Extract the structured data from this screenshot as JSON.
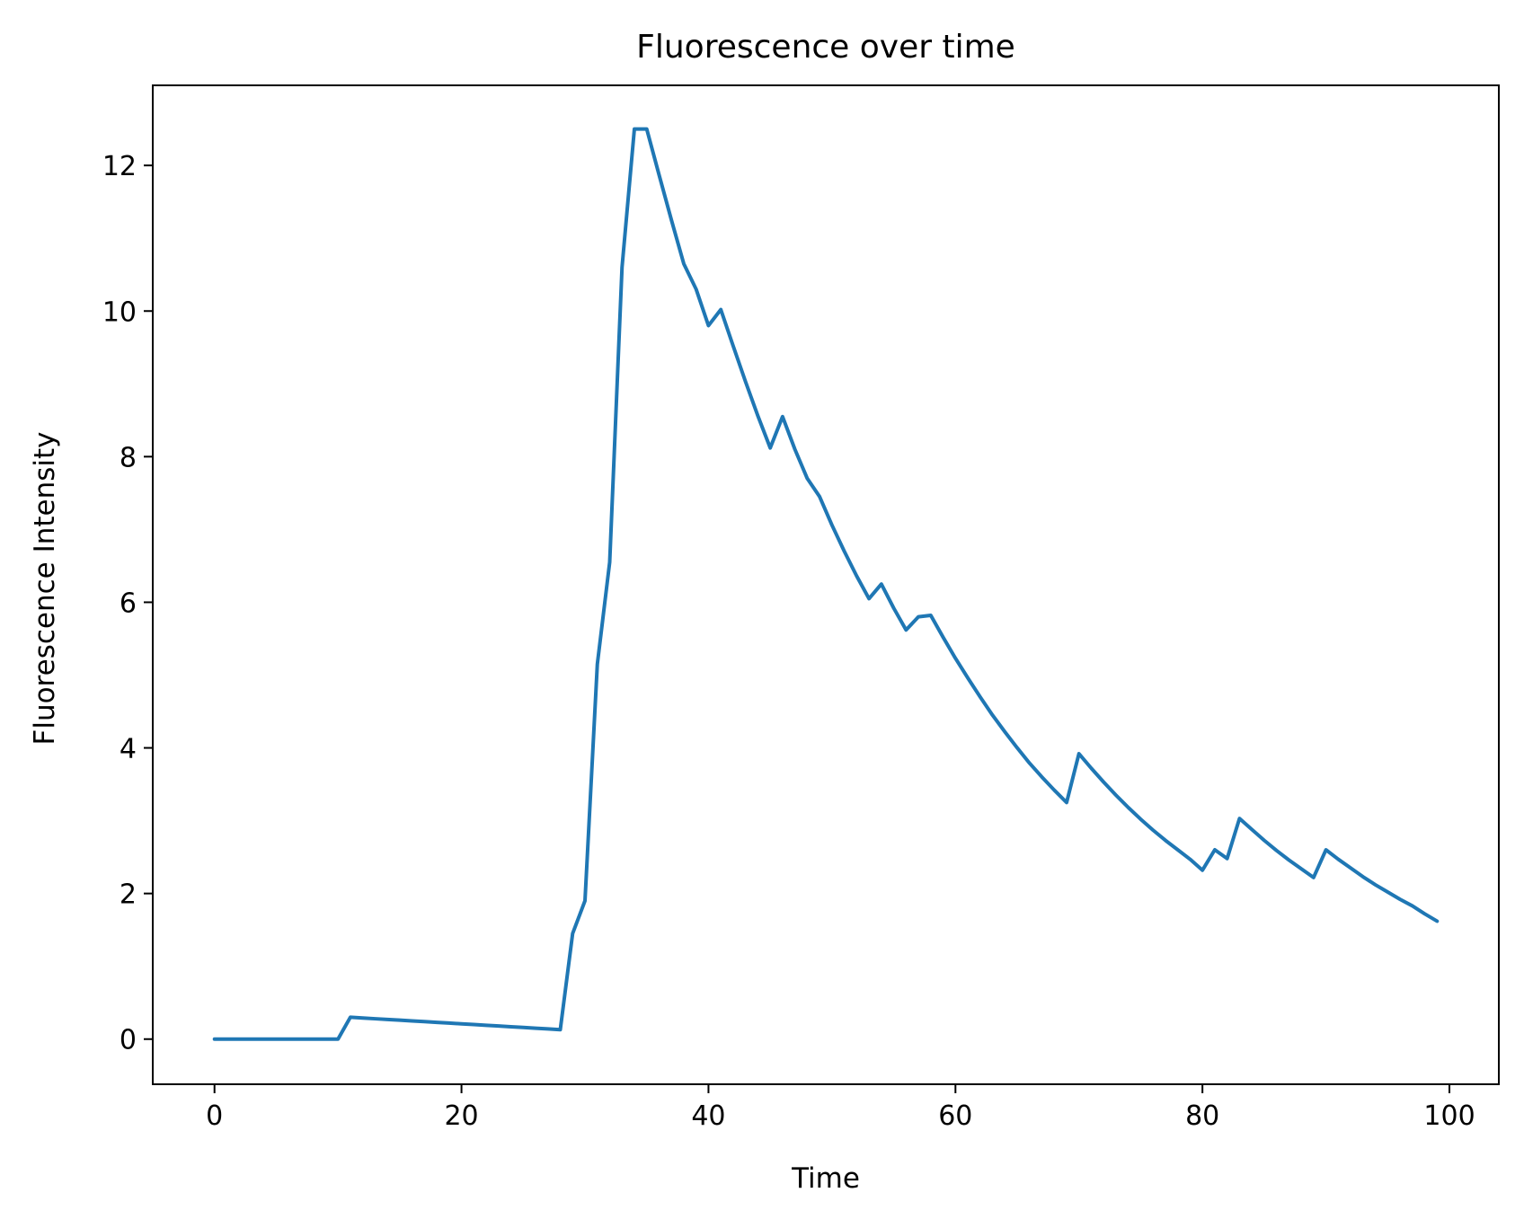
{
  "chart_data": {
    "type": "line",
    "title": "Fluorescence over time",
    "xlabel": "Time",
    "ylabel": "Fluorescence Intensity",
    "xlim": [
      -5,
      104
    ],
    "ylim": [
      -0.62,
      13.1
    ],
    "xticks": [
      0,
      20,
      40,
      60,
      80,
      100
    ],
    "yticks": [
      0,
      2,
      4,
      6,
      8,
      10,
      12
    ],
    "grid": false,
    "legend": "none",
    "series": [
      {
        "color": "#1f77b4",
        "x": [
          0,
          10,
          11,
          12,
          13,
          14,
          15,
          16,
          17,
          18,
          19,
          20,
          21,
          22,
          23,
          24,
          25,
          26,
          27,
          28,
          29,
          30,
          31,
          32,
          33,
          34,
          35,
          36,
          37,
          38,
          39,
          40,
          41,
          42,
          43,
          44,
          45,
          46,
          47,
          48,
          49,
          50,
          51,
          52,
          53,
          54,
          55,
          56,
          57,
          58,
          59,
          60,
          61,
          62,
          63,
          64,
          65,
          66,
          67,
          68,
          69,
          70,
          71,
          72,
          73,
          74,
          75,
          76,
          77,
          78,
          79,
          80,
          81,
          82,
          83,
          84,
          85,
          86,
          87,
          88,
          89,
          90,
          91,
          92,
          93,
          94,
          95,
          96,
          97,
          98,
          99
        ],
        "y": [
          0.0,
          0.0,
          0.3,
          0.29,
          0.28,
          0.27,
          0.26,
          0.25,
          0.24,
          0.23,
          0.22,
          0.21,
          0.2,
          0.19,
          0.18,
          0.17,
          0.16,
          0.15,
          0.14,
          0.13,
          1.45,
          1.9,
          5.15,
          6.55,
          10.6,
          12.5,
          12.5,
          11.87,
          11.25,
          10.65,
          10.3,
          9.8,
          10.02,
          9.52,
          9.03,
          8.56,
          8.12,
          8.55,
          8.1,
          7.7,
          7.45,
          7.06,
          6.7,
          6.36,
          6.05,
          6.25,
          5.92,
          5.62,
          5.8,
          5.82,
          5.52,
          5.23,
          4.96,
          4.7,
          4.45,
          4.22,
          4.0,
          3.79,
          3.6,
          3.42,
          3.25,
          3.92,
          3.72,
          3.53,
          3.35,
          3.18,
          3.02,
          2.87,
          2.73,
          2.6,
          2.47,
          2.32,
          2.6,
          2.48,
          3.03,
          2.88,
          2.73,
          2.59,
          2.46,
          2.34,
          2.22,
          2.6,
          2.47,
          2.35,
          2.23,
          2.12,
          2.02,
          1.92,
          1.83,
          1.72,
          1.62
        ]
      }
    ]
  }
}
